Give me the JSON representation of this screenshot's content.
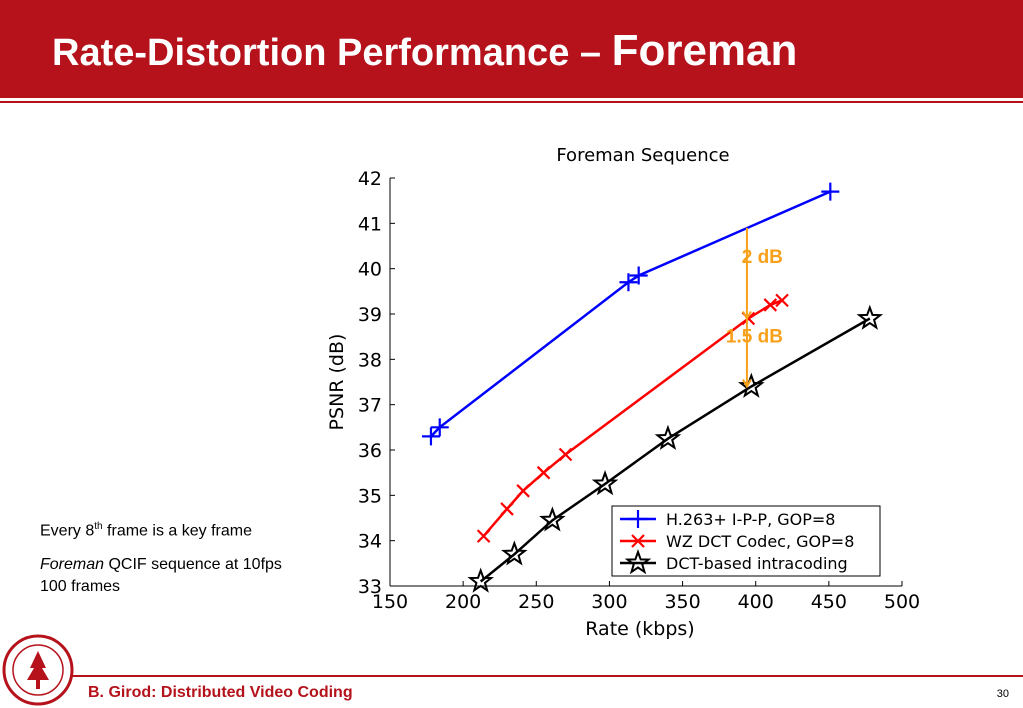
{
  "slide": {
    "title_main": "Rate-Distortion Performance – ",
    "title_emph": "Foreman",
    "notes": {
      "line1_pre": "Every 8",
      "line1_sup": "th",
      "line1_post": " frame is a key frame",
      "line2_italic": "Foreman",
      "line2_post": " QCIF sequence at 10fps 100 frames"
    },
    "footer": "B. Girod: Distributed Video Coding",
    "page_number": "30"
  },
  "colors": {
    "brand_red": "#b5121b",
    "series_blue": "#0000ff",
    "series_red": "#ff0000",
    "series_black": "#000000",
    "annotation_orange": "#f7a11a"
  },
  "chart_data": {
    "type": "line",
    "title": "Foreman Sequence",
    "xlabel": "Rate (kbps)",
    "ylabel": "PSNR (dB)",
    "xlim": [
      150,
      500
    ],
    "ylim": [
      33,
      42
    ],
    "xticks": [
      150,
      200,
      250,
      300,
      350,
      400,
      450,
      500
    ],
    "yticks": [
      33,
      34,
      35,
      36,
      37,
      38,
      39,
      40,
      41,
      42
    ],
    "grid": false,
    "legend_position": "bottom-right",
    "series": [
      {
        "name": "H.263+ I-P-P, GOP=8",
        "color": "#0000ff",
        "marker": "plus",
        "x": [
          178,
          184,
          313,
          320,
          451
        ],
        "y": [
          36.3,
          36.5,
          39.7,
          39.85,
          41.7
        ]
      },
      {
        "name": "WZ DCT Codec, GOP=8",
        "color": "#ff0000",
        "marker": "x",
        "x": [
          214,
          230,
          241,
          255,
          270,
          395,
          410,
          418
        ],
        "y": [
          34.1,
          34.7,
          35.1,
          35.5,
          35.9,
          38.9,
          39.2,
          39.3
        ]
      },
      {
        "name": "DCT-based intracoding",
        "color": "#000000",
        "marker": "star",
        "x": [
          212,
          235,
          261,
          297,
          340,
          397,
          478
        ],
        "y": [
          33.1,
          33.7,
          34.45,
          35.25,
          36.25,
          37.4,
          38.9
        ]
      }
    ],
    "annotations": [
      {
        "text": "2 dB",
        "x": 394,
        "y_from": 40.9,
        "y_to": 38.9
      },
      {
        "text": "1.5 dB",
        "x": 394,
        "y_from": 38.9,
        "y_to": 37.4
      }
    ]
  }
}
